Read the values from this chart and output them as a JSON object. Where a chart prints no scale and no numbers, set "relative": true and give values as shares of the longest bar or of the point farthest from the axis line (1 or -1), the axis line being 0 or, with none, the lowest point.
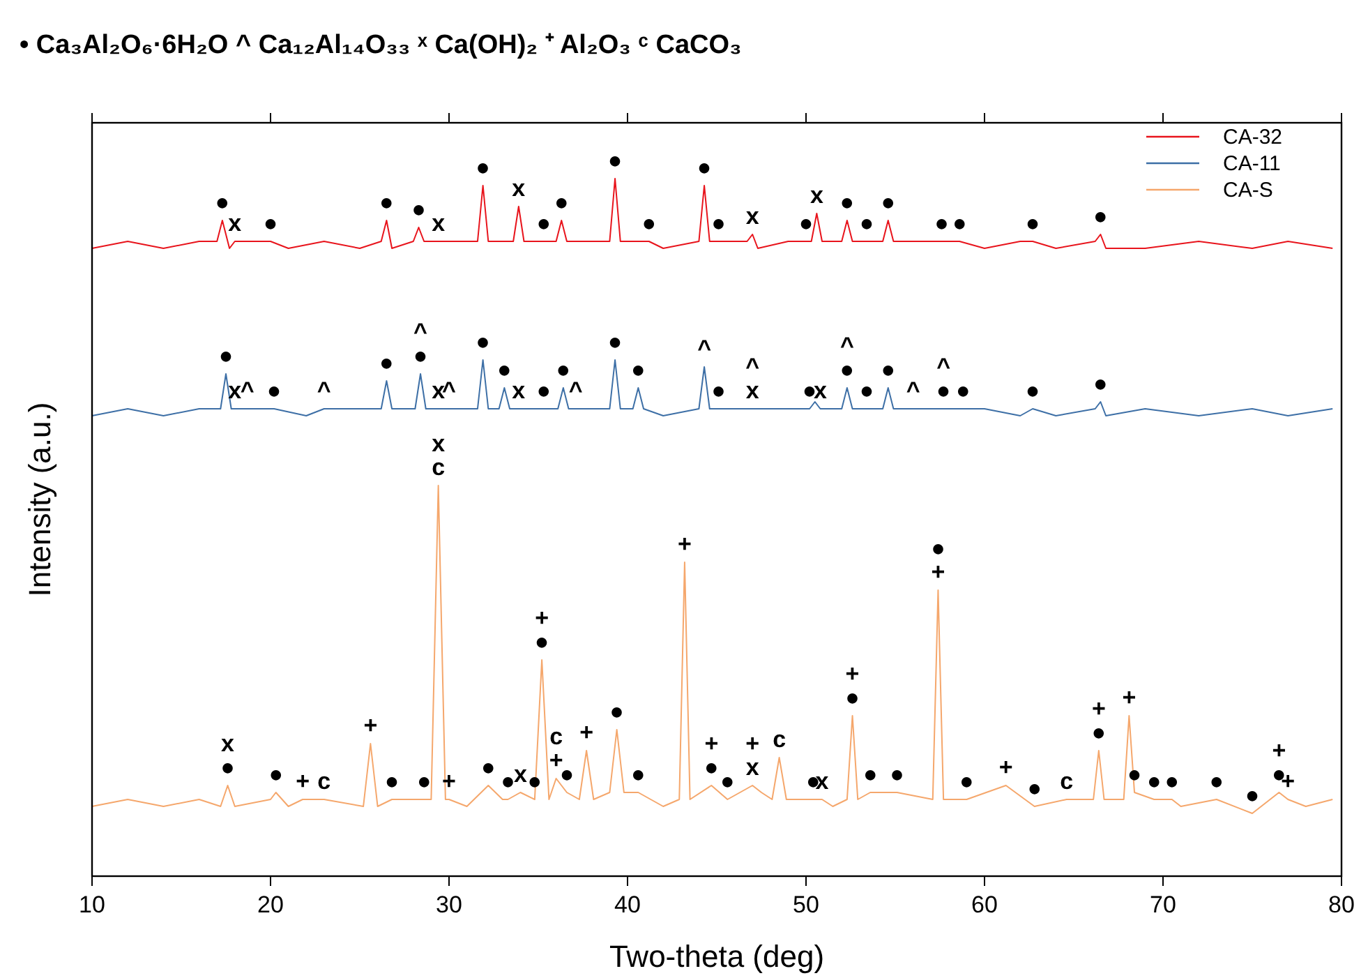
{
  "chart_data": {
    "type": "line",
    "relative": true,
    "title": "• Ca₃Al₂O₆·6H₂O    ^ Ca₁₂Al₁₄O₃₃   ˣ Ca(OH)₂   ⁺ Al₂O₃   ᶜ CaCO₃",
    "xlabel": "Two-theta (deg)",
    "ylabel": "Intensity (a.u.)",
    "xlim": [
      10,
      80
    ],
    "xticks": [
      10,
      20,
      30,
      40,
      50,
      60,
      70,
      80
    ],
    "grid": false,
    "legend": "top right",
    "line_style": "solid",
    "marker": "none",
    "series": [
      {
        "name": "CA-32",
        "color": "#e8141c",
        "x": [
          10,
          12,
          14,
          16,
          17.0,
          17.3,
          17.7,
          18.0,
          19,
          20,
          21,
          23,
          25,
          26.2,
          26.5,
          26.8,
          28.0,
          28.3,
          28.6,
          29.4,
          30,
          31.6,
          31.9,
          32.2,
          33.6,
          33.9,
          34.2,
          35.3,
          36.0,
          36.3,
          36.6,
          38,
          39.0,
          39.3,
          39.6,
          41.2,
          42,
          44.0,
          44.3,
          44.6,
          45.1,
          46,
          46.7,
          47.0,
          47.3,
          49,
          50.0,
          50.3,
          50.6,
          50.9,
          52.0,
          52.3,
          52.6,
          53.4,
          54.3,
          54.6,
          54.9,
          57,
          57.6,
          58.6,
          60,
          62,
          62.7,
          64,
          66.2,
          66.5,
          66.8,
          69,
          72,
          75,
          77,
          79.5
        ],
        "values": [
          0.9,
          0.91,
          0.9,
          0.91,
          0.91,
          0.94,
          0.9,
          0.91,
          0.91,
          0.91,
          0.9,
          0.91,
          0.9,
          0.91,
          0.94,
          0.9,
          0.91,
          0.93,
          0.91,
          0.91,
          0.91,
          0.91,
          0.99,
          0.91,
          0.91,
          0.96,
          0.91,
          0.91,
          0.91,
          0.94,
          0.91,
          0.91,
          0.91,
          1.0,
          0.91,
          0.91,
          0.9,
          0.91,
          0.99,
          0.91,
          0.91,
          0.91,
          0.91,
          0.92,
          0.9,
          0.91,
          0.91,
          0.91,
          0.95,
          0.91,
          0.91,
          0.94,
          0.91,
          0.91,
          0.91,
          0.94,
          0.91,
          0.91,
          0.91,
          0.91,
          0.9,
          0.91,
          0.91,
          0.9,
          0.91,
          0.92,
          0.9,
          0.9,
          0.91,
          0.9,
          0.91,
          0.9
        ]
      },
      {
        "name": "CA-11",
        "color": "#3d6fa6",
        "x": [
          10,
          12,
          14,
          16,
          17.2,
          17.5,
          17.8,
          18.0,
          18.7,
          19,
          20.2,
          22,
          23.0,
          24,
          26.2,
          26.5,
          26.8,
          28.1,
          28.4,
          28.7,
          29.4,
          30,
          31.6,
          31.9,
          32.2,
          32.8,
          33.1,
          33.4,
          33.9,
          35.3,
          36.1,
          36.4,
          36.7,
          37.1,
          38,
          39.0,
          39.3,
          39.6,
          40.3,
          40.6,
          40.9,
          42,
          44.0,
          44.3,
          44.6,
          45.1,
          46,
          47.0,
          48,
          50.2,
          50.5,
          50.8,
          52.0,
          52.3,
          52.6,
          53.4,
          54.3,
          54.6,
          54.9,
          56.0,
          57.7,
          58.8,
          60,
          62,
          62.7,
          64,
          66.2,
          66.5,
          66.8,
          69,
          72,
          75,
          77,
          79.5
        ],
        "values": [
          0.66,
          0.67,
          0.66,
          0.67,
          0.67,
          0.72,
          0.67,
          0.67,
          0.67,
          0.67,
          0.67,
          0.66,
          0.67,
          0.67,
          0.67,
          0.71,
          0.67,
          0.67,
          0.72,
          0.67,
          0.67,
          0.67,
          0.67,
          0.74,
          0.67,
          0.67,
          0.7,
          0.67,
          0.67,
          0.67,
          0.67,
          0.7,
          0.67,
          0.67,
          0.67,
          0.67,
          0.74,
          0.67,
          0.67,
          0.7,
          0.67,
          0.66,
          0.67,
          0.73,
          0.67,
          0.67,
          0.67,
          0.67,
          0.67,
          0.67,
          0.68,
          0.67,
          0.67,
          0.7,
          0.67,
          0.67,
          0.67,
          0.7,
          0.67,
          0.67,
          0.67,
          0.67,
          0.67,
          0.66,
          0.67,
          0.66,
          0.67,
          0.68,
          0.66,
          0.67,
          0.66,
          0.67,
          0.66,
          0.67
        ]
      },
      {
        "name": "CA-S",
        "color": "#f5a76c",
        "x": [
          10,
          12,
          14,
          16,
          17.2,
          17.6,
          18,
          20,
          20.3,
          21,
          21.8,
          23,
          25.2,
          25.6,
          26,
          26.8,
          27,
          28.6,
          29.0,
          29.4,
          29.8,
          30.0,
          31,
          32.2,
          33,
          33.3,
          34,
          34.8,
          35.2,
          35.6,
          36.0,
          36.6,
          37.3,
          37.7,
          38.1,
          39,
          39.4,
          39.8,
          40.6,
          42,
          42.9,
          43.2,
          43.5,
          44.7,
          45.6,
          47,
          47.5,
          48.1,
          48.5,
          48.9,
          50.4,
          50.9,
          51.5,
          52.3,
          52.6,
          52.9,
          53.6,
          55.1,
          57.1,
          57.4,
          57.7,
          59,
          61.2,
          62.8,
          64.6,
          66.1,
          66.4,
          66.7,
          67.8,
          68.1,
          68.4,
          69.5,
          70.5,
          71,
          73,
          75,
          76.5,
          77,
          78,
          79.5
        ],
        "values": [
          0.1,
          0.11,
          0.1,
          0.11,
          0.1,
          0.13,
          0.1,
          0.11,
          0.12,
          0.1,
          0.11,
          0.11,
          0.1,
          0.19,
          0.1,
          0.11,
          0.11,
          0.11,
          0.11,
          0.56,
          0.11,
          0.11,
          0.1,
          0.13,
          0.11,
          0.11,
          0.12,
          0.11,
          0.31,
          0.11,
          0.14,
          0.12,
          0.11,
          0.18,
          0.11,
          0.12,
          0.21,
          0.12,
          0.12,
          0.1,
          0.11,
          0.45,
          0.11,
          0.13,
          0.11,
          0.13,
          0.12,
          0.11,
          0.17,
          0.11,
          0.11,
          0.11,
          0.1,
          0.11,
          0.23,
          0.11,
          0.12,
          0.12,
          0.11,
          0.41,
          0.11,
          0.11,
          0.13,
          0.1,
          0.11,
          0.11,
          0.18,
          0.11,
          0.11,
          0.23,
          0.12,
          0.11,
          0.11,
          0.1,
          0.11,
          0.09,
          0.12,
          0.11,
          0.1,
          0.11
        ]
      }
    ],
    "annotations": [
      {
        "text": "●",
        "x": 17.3,
        "y": 0.94
      },
      {
        "text": "x",
        "x": 18.0,
        "y": 0.91
      },
      {
        "text": "●",
        "x": 20,
        "y": 0.91
      },
      {
        "text": "●",
        "x": 26.5,
        "y": 0.94
      },
      {
        "text": "●",
        "x": 28.3,
        "y": 0.93
      },
      {
        "text": "x",
        "x": 29.4,
        "y": 0.91
      },
      {
        "text": "●",
        "x": 31.9,
        "y": 0.99
      },
      {
        "text": "x",
        "x": 33.9,
        "y": 0.96
      },
      {
        "text": "●",
        "x": 35.3,
        "y": 0.91
      },
      {
        "text": "●",
        "x": 36.3,
        "y": 0.94
      },
      {
        "text": "●",
        "x": 39.3,
        "y": 1.0
      },
      {
        "text": "●",
        "x": 41.2,
        "y": 0.91
      },
      {
        "text": "●",
        "x": 44.3,
        "y": 0.99
      },
      {
        "text": "●",
        "x": 45.1,
        "y": 0.91
      },
      {
        "text": "x",
        "x": 47.0,
        "y": 0.92
      },
      {
        "text": "●",
        "x": 50.0,
        "y": 0.91
      },
      {
        "text": "x",
        "x": 50.6,
        "y": 0.95
      },
      {
        "text": "●",
        "x": 52.3,
        "y": 0.94
      },
      {
        "text": "●",
        "x": 53.4,
        "y": 0.91
      },
      {
        "text": "●",
        "x": 54.6,
        "y": 0.94
      },
      {
        "text": "●",
        "x": 57.6,
        "y": 0.91
      },
      {
        "text": "●",
        "x": 58.6,
        "y": 0.91
      },
      {
        "text": "●",
        "x": 62.7,
        "y": 0.91
      },
      {
        "text": "●",
        "x": 66.5,
        "y": 0.92
      },
      {
        "text": "●",
        "x": 17.5,
        "y": 0.72
      },
      {
        "text": "x",
        "x": 18.0,
        "y": 0.67
      },
      {
        "text": "^",
        "x": 18.7,
        "y": 0.67
      },
      {
        "text": "●",
        "x": 20.2,
        "y": 0.67
      },
      {
        "text": "^",
        "x": 23.0,
        "y": 0.67
      },
      {
        "text": "●",
        "x": 26.5,
        "y": 0.71
      },
      {
        "text": "●",
        "x": 28.4,
        "y": 0.72
      },
      {
        "text": "^",
        "x": 28.4,
        "y": 0.72
      },
      {
        "text": "x",
        "x": 29.4,
        "y": 0.67
      },
      {
        "text": "^",
        "x": 30,
        "y": 0.67
      },
      {
        "text": "●",
        "x": 31.9,
        "y": 0.74
      },
      {
        "text": "●",
        "x": 33.1,
        "y": 0.7
      },
      {
        "text": "x",
        "x": 33.9,
        "y": 0.67
      },
      {
        "text": "●",
        "x": 35.3,
        "y": 0.67
      },
      {
        "text": "●",
        "x": 36.4,
        "y": 0.7
      },
      {
        "text": "^",
        "x": 37.1,
        "y": 0.67
      },
      {
        "text": "●",
        "x": 39.3,
        "y": 0.74
      },
      {
        "text": "●",
        "x": 40.6,
        "y": 0.7
      },
      {
        "text": "^",
        "x": 44.3,
        "y": 0.73
      },
      {
        "text": "●",
        "x": 45.1,
        "y": 0.67
      },
      {
        "text": "x",
        "x": 47.0,
        "y": 0.67
      },
      {
        "text": "^",
        "x": 47.0,
        "y": 0.67
      },
      {
        "text": "●",
        "x": 50.2,
        "y": 0.67
      },
      {
        "text": "x",
        "x": 50.8,
        "y": 0.67
      },
      {
        "text": "●",
        "x": 52.3,
        "y": 0.7
      },
      {
        "text": "^",
        "x": 52.3,
        "y": 0.7
      },
      {
        "text": "●",
        "x": 53.4,
        "y": 0.67
      },
      {
        "text": "●",
        "x": 54.6,
        "y": 0.7
      },
      {
        "text": "^",
        "x": 56.0,
        "y": 0.67
      },
      {
        "text": "●",
        "x": 57.7,
        "y": 0.67
      },
      {
        "text": "^",
        "x": 57.7,
        "y": 0.67
      },
      {
        "text": "●",
        "x": 58.8,
        "y": 0.67
      },
      {
        "text": "●",
        "x": 62.7,
        "y": 0.67
      },
      {
        "text": "●",
        "x": 66.5,
        "y": 0.68
      },
      {
        "text": "●",
        "x": 17.6,
        "y": 0.13
      },
      {
        "text": "x",
        "x": 17.6,
        "y": 0.13
      },
      {
        "text": "●",
        "x": 20.3,
        "y": 0.12
      },
      {
        "text": "+",
        "x": 21.8,
        "y": 0.11
      },
      {
        "text": "c",
        "x": 23,
        "y": 0.11
      },
      {
        "text": "+",
        "x": 25.6,
        "y": 0.19
      },
      {
        "text": "●",
        "x": 26.8,
        "y": 0.11
      },
      {
        "text": "●",
        "x": 28.6,
        "y": 0.11
      },
      {
        "text": "c",
        "x": 29.4,
        "y": 0.56
      },
      {
        "text": "x",
        "x": 29.4,
        "y": 0.56
      },
      {
        "text": "+",
        "x": 30.0,
        "y": 0.11
      },
      {
        "text": "●",
        "x": 32.2,
        "y": 0.13
      },
      {
        "text": "●",
        "x": 33.3,
        "y": 0.11
      },
      {
        "text": "x",
        "x": 34,
        "y": 0.12
      },
      {
        "text": "●",
        "x": 34.8,
        "y": 0.11
      },
      {
        "text": "●",
        "x": 35.2,
        "y": 0.31
      },
      {
        "text": "+",
        "x": 35.2,
        "y": 0.31
      },
      {
        "text": "+",
        "x": 36.0,
        "y": 0.14
      },
      {
        "text": "c",
        "x": 36.0,
        "y": 0.14
      },
      {
        "text": "●",
        "x": 36.6,
        "y": 0.12
      },
      {
        "text": "+",
        "x": 37.7,
        "y": 0.18
      },
      {
        "text": "●",
        "x": 39.4,
        "y": 0.21
      },
      {
        "text": "●",
        "x": 40.6,
        "y": 0.12
      },
      {
        "text": "+",
        "x": 43.2,
        "y": 0.45
      },
      {
        "text": "●",
        "x": 44.7,
        "y": 0.13
      },
      {
        "text": "+",
        "x": 44.7,
        "y": 0.13
      },
      {
        "text": "●",
        "x": 45.6,
        "y": 0.11
      },
      {
        "text": "x",
        "x": 47,
        "y": 0.13
      },
      {
        "text": "+",
        "x": 47,
        "y": 0.13
      },
      {
        "text": "c",
        "x": 48.5,
        "y": 0.17
      },
      {
        "text": "●",
        "x": 50.4,
        "y": 0.11
      },
      {
        "text": "x",
        "x": 50.9,
        "y": 0.11
      },
      {
        "text": "●",
        "x": 52.6,
        "y": 0.23
      },
      {
        "text": "+",
        "x": 52.6,
        "y": 0.23
      },
      {
        "text": "●",
        "x": 53.6,
        "y": 0.12
      },
      {
        "text": "●",
        "x": 55.1,
        "y": 0.12
      },
      {
        "text": "+",
        "x": 57.4,
        "y": 0.41
      },
      {
        "text": "●",
        "x": 57.4,
        "y": 0.41
      },
      {
        "text": "●",
        "x": 59,
        "y": 0.11
      },
      {
        "text": "+",
        "x": 61.2,
        "y": 0.13
      },
      {
        "text": "●",
        "x": 62.8,
        "y": 0.1
      },
      {
        "text": "c",
        "x": 64.6,
        "y": 0.11
      },
      {
        "text": "●",
        "x": 66.4,
        "y": 0.18
      },
      {
        "text": "+",
        "x": 66.4,
        "y": 0.18
      },
      {
        "text": "+",
        "x": 68.1,
        "y": 0.23
      },
      {
        "text": "●",
        "x": 68.4,
        "y": 0.12
      },
      {
        "text": "●",
        "x": 69.5,
        "y": 0.11
      },
      {
        "text": "●",
        "x": 70.5,
        "y": 0.11
      },
      {
        "text": "●",
        "x": 73,
        "y": 0.11
      },
      {
        "text": "●",
        "x": 75,
        "y": 0.09
      },
      {
        "text": "●",
        "x": 76.5,
        "y": 0.12
      },
      {
        "text": "+",
        "x": 76.5,
        "y": 0.12
      },
      {
        "text": "+",
        "x": 77,
        "y": 0.11
      }
    ]
  }
}
